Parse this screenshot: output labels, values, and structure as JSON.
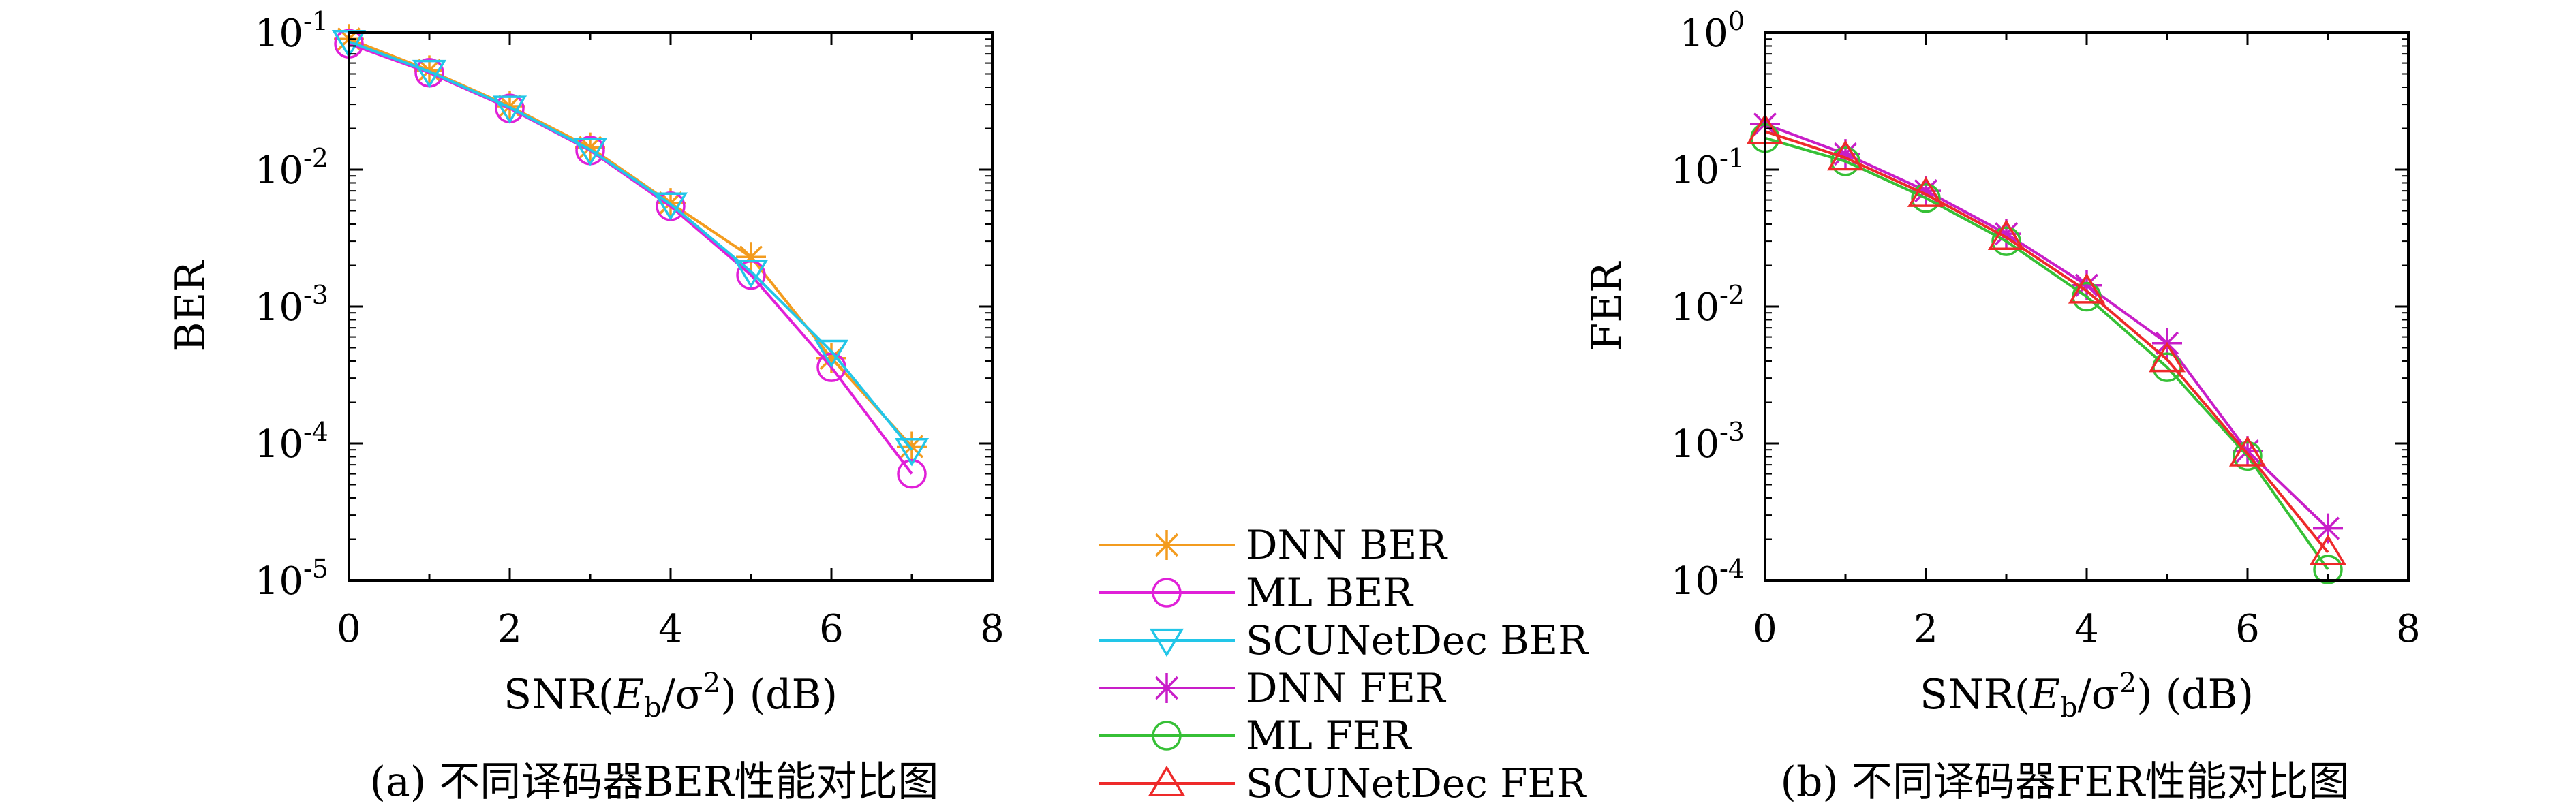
{
  "colors": {
    "dnn_ber": "#f39c1f",
    "ml_ber": "#e020d8",
    "scunet_ber": "#22c6e8",
    "dnn_fer": "#c81ec8",
    "ml_fer": "#36c036",
    "scunet_fer": "#ee2a2a"
  },
  "legend": {
    "items": [
      {
        "label": "DNN BER",
        "marker": "asterisk",
        "color": "#f39c1f"
      },
      {
        "label": "ML BER",
        "marker": "circle",
        "color": "#e020d8"
      },
      {
        "label": "SCUNetDec BER",
        "marker": "triangle-down",
        "color": "#22c6e8"
      },
      {
        "label": "DNN FER",
        "marker": "asterisk",
        "color": "#c81ec8"
      },
      {
        "label": "ML FER",
        "marker": "circle",
        "color": "#36c036"
      },
      {
        "label": "SCUNetDec FER",
        "marker": "triangle-up",
        "color": "#ee2a2a"
      }
    ]
  },
  "chart_data": [
    {
      "type": "line",
      "caption": "(a) 不同译码器BER性能对比图",
      "xlabel": "SNR(Eb/σ2) (dB)",
      "xlabel_parts": {
        "prefix": "SNR(",
        "E": "E",
        "sub": "b",
        "slash": "/σ",
        "sup": "2",
        "suffix": ") (dB)"
      },
      "ylabel": "BER",
      "xlim": [
        0,
        8
      ],
      "ylim": [
        1e-05,
        0.1
      ],
      "yscale": "log",
      "grid": false,
      "xticks": [
        "0",
        "2",
        "4",
        "6",
        "8"
      ],
      "yticks": [
        {
          "base": "10",
          "exp": "-1"
        },
        {
          "base": "10",
          "exp": "-2"
        },
        {
          "base": "10",
          "exp": "-3"
        },
        {
          "base": "10",
          "exp": "-4"
        },
        {
          "base": "10",
          "exp": "-5"
        }
      ],
      "x": [
        0,
        1,
        2,
        3,
        4,
        5,
        6,
        7
      ],
      "series": [
        {
          "name": "DNN BER",
          "marker": "asterisk",
          "color": "#f39c1f",
          "values": [
            0.09,
            0.053,
            0.029,
            0.0145,
            0.0057,
            0.0023,
            0.00042,
            9.5e-05
          ]
        },
        {
          "name": "ML BER",
          "marker": "circle",
          "color": "#e020d8",
          "values": [
            0.083,
            0.051,
            0.028,
            0.0138,
            0.0054,
            0.0017,
            0.00036,
            6e-05
          ]
        },
        {
          "name": "SCUNetDec BER",
          "marker": "triangle-down",
          "color": "#22c6e8",
          "values": [
            0.086,
            0.052,
            0.0285,
            0.014,
            0.0056,
            0.0018,
            0.00047,
            9e-05
          ]
        }
      ]
    },
    {
      "type": "line",
      "caption": "(b) 不同译码器FER性能对比图",
      "xlabel": "SNR(Eb/σ2) (dB)",
      "xlabel_parts": {
        "prefix": "SNR(",
        "E": "E",
        "sub": "b",
        "slash": "/σ",
        "sup": "2",
        "suffix": ") (dB)"
      },
      "ylabel": "FER",
      "xlim": [
        0,
        8
      ],
      "ylim": [
        0.0001,
        1
      ],
      "yscale": "log",
      "grid": false,
      "xticks": [
        "0",
        "2",
        "4",
        "6",
        "8"
      ],
      "yticks": [
        {
          "base": "10",
          "exp": "0"
        },
        {
          "base": "10",
          "exp": "-1"
        },
        {
          "base": "10",
          "exp": "-2"
        },
        {
          "base": "10",
          "exp": "-3"
        },
        {
          "base": "10",
          "exp": "-4"
        }
      ],
      "x": [
        0,
        1,
        2,
        3,
        4,
        5,
        6,
        7
      ],
      "series": [
        {
          "name": "DNN FER",
          "marker": "asterisk",
          "color": "#c81ec8",
          "values": [
            0.215,
            0.13,
            0.07,
            0.034,
            0.0143,
            0.0054,
            0.00088,
            0.00024
          ]
        },
        {
          "name": "ML FER",
          "marker": "circle",
          "color": "#36c036",
          "values": [
            0.17,
            0.115,
            0.062,
            0.03,
            0.0118,
            0.0036,
            0.00081,
            0.00012
          ]
        },
        {
          "name": "SCUNetDec FER",
          "marker": "triangle-up",
          "color": "#ee2a2a",
          "values": [
            0.19,
            0.122,
            0.066,
            0.032,
            0.013,
            0.0041,
            0.00084,
            0.00016
          ]
        }
      ]
    }
  ]
}
